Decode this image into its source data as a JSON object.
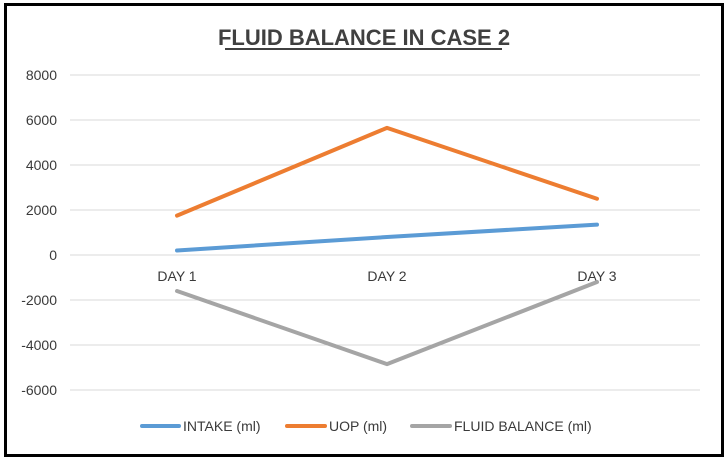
{
  "chart_data": {
    "type": "line",
    "title": "FLUID BALANCE IN CASE 2",
    "xlabel": "",
    "ylabel": "",
    "categories": [
      "DAY 1",
      "DAY 2",
      "DAY 3"
    ],
    "ylim": [
      -6000,
      8000
    ],
    "yticks": [
      8000,
      6000,
      4000,
      2000,
      0,
      -2000,
      -4000,
      -6000
    ],
    "grid": true,
    "legend_position": "bottom",
    "series": [
      {
        "name": "INTAKE (ml)",
        "color": "#5b9bd5",
        "values": [
          200,
          800,
          1350
        ]
      },
      {
        "name": "UOP (ml)",
        "color": "#ed7d31",
        "values": [
          1750,
          5650,
          2500
        ]
      },
      {
        "name": "FLUID BALANCE (ml)",
        "color": "#a5a5a5",
        "values": [
          -1600,
          -4850,
          -1200
        ]
      }
    ]
  }
}
